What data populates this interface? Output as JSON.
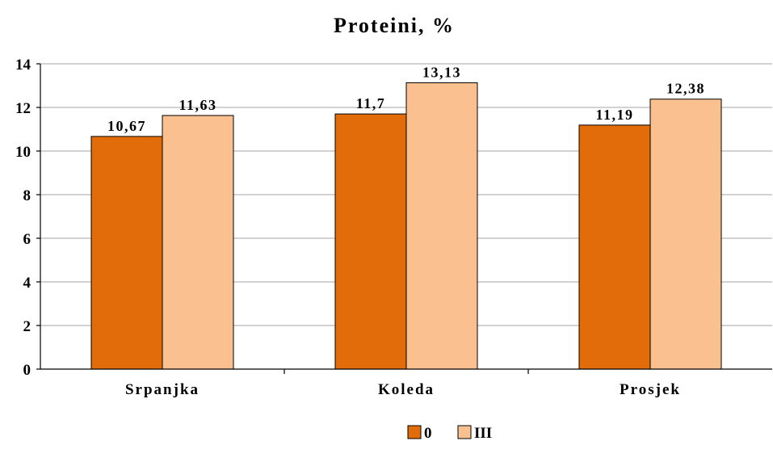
{
  "chart_data": {
    "type": "bar",
    "title": "Proteini, %",
    "categories": [
      "Srpanjka",
      "Koleda",
      "Prosjek"
    ],
    "series": [
      {
        "name": "0",
        "values": [
          10.67,
          11.7,
          11.19
        ],
        "labels": [
          "10,67",
          "11,7",
          "11,19"
        ],
        "color": "#E36C0A"
      },
      {
        "name": "III",
        "values": [
          11.63,
          13.13,
          12.38
        ],
        "labels": [
          "11,63",
          "13,13",
          "12,38"
        ],
        "color": "#FAC090"
      }
    ],
    "ylim": [
      0,
      14
    ],
    "yticks": [
      0,
      2,
      4,
      6,
      8,
      10,
      12,
      14
    ],
    "grid": true,
    "legend_position": "bottom",
    "xlabel": "",
    "ylabel": ""
  }
}
